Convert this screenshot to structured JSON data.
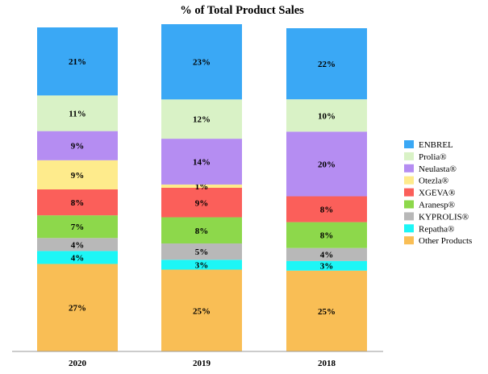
{
  "chart_data": {
    "type": "bar",
    "stacked": true,
    "title": "% of Total Product Sales",
    "categories": [
      "2020",
      "2019",
      "2018"
    ],
    "unit": "%",
    "series": [
      {
        "name": "Other Products",
        "color": "#F9BE55",
        "values": [
          27,
          25,
          25
        ]
      },
      {
        "name": "Repatha®",
        "color": "#1DF6F6",
        "values": [
          4,
          3,
          3
        ]
      },
      {
        "name": "KYPROLIS®",
        "color": "#B8B8B8",
        "values": [
          4,
          5,
          4
        ]
      },
      {
        "name": "Aranesp®",
        "color": "#8DD84B",
        "values": [
          7,
          8,
          8
        ]
      },
      {
        "name": "XGEVA®",
        "color": "#FB5F5A",
        "values": [
          8,
          9,
          8
        ]
      },
      {
        "name": "Otezla®",
        "color": "#FEEB8C",
        "values": [
          9,
          1,
          null
        ]
      },
      {
        "name": "Neulasta®",
        "color": "#B58DF2",
        "values": [
          9,
          14,
          20
        ]
      },
      {
        "name": "Prolia®",
        "color": "#D9F2C6",
        "values": [
          11,
          12,
          10
        ]
      },
      {
        "name": "ENBREL",
        "color": "#3AA8F5",
        "values": [
          21,
          23,
          22
        ]
      }
    ],
    "legend": {
      "placement": "right",
      "order": [
        "ENBREL",
        "Prolia®",
        "Neulasta®",
        "Otezla®",
        "XGEVA®",
        "Aranesp®",
        "KYPROLIS®",
        "Repatha®",
        "Other Products"
      ]
    },
    "grid": false
  }
}
